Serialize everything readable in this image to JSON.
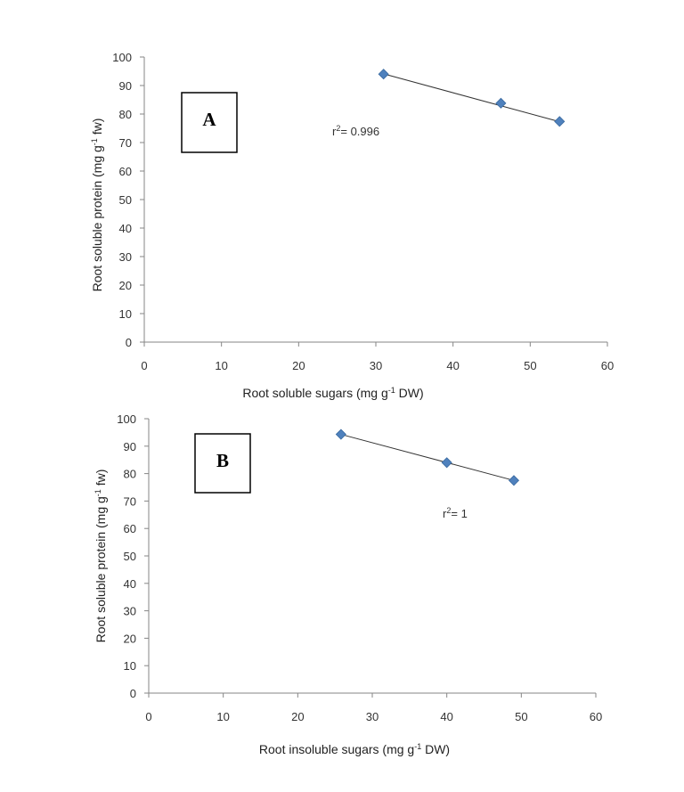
{
  "chart_data": [
    {
      "type": "scatter",
      "panel_label": "A",
      "xlabel_pre": "Root soluble sugars  (mg  g",
      "xlabel_sup": "-1",
      "xlabel_post": " DW)",
      "ylabel_pre": "Root soluble protein (mg  g",
      "ylabel_sup": "-1",
      "ylabel_post": " fw)",
      "xlim": [
        0,
        60
      ],
      "ylim": [
        0,
        100
      ],
      "x_ticks": [
        0,
        10,
        20,
        30,
        40,
        50,
        60
      ],
      "y_ticks": [
        0,
        10,
        20,
        30,
        40,
        50,
        60,
        70,
        80,
        90,
        100
      ],
      "series": [
        {
          "name": "data",
          "x": [
            31,
            46.2,
            53.8
          ],
          "y": [
            94,
            83.8,
            77.4
          ]
        }
      ],
      "trendline": {
        "x": [
          31,
          53.8
        ],
        "y": [
          94.1,
          77.3
        ]
      },
      "r2_pre": "r",
      "r2_sup": "2",
      "r2_post": "= 0.996",
      "marker_color": "#4f81bd"
    },
    {
      "type": "scatter",
      "panel_label": "B",
      "xlabel_pre": "Root  insoluble sugars  (mg  g",
      "xlabel_sup": "-1",
      "xlabel_post": " DW)",
      "ylabel_pre": "Root soluble protein (mg  g",
      "ylabel_sup": "-1",
      "ylabel_post": " fw)",
      "xlim": [
        0,
        60
      ],
      "ylim": [
        0,
        100
      ],
      "x_ticks": [
        0,
        10,
        20,
        30,
        40,
        50,
        60
      ],
      "y_ticks": [
        0,
        10,
        20,
        30,
        40,
        50,
        60,
        70,
        80,
        90,
        100
      ],
      "series": [
        {
          "name": "data",
          "x": [
            25.8,
            40,
            49
          ],
          "y": [
            94.3,
            84,
            77.5
          ]
        }
      ],
      "trendline": {
        "x": [
          25.8,
          49
        ],
        "y": [
          94.3,
          77.5
        ]
      },
      "r2_pre": "r",
      "r2_sup": "2",
      "r2_post": "= 1",
      "marker_color": "#4f81bd"
    }
  ]
}
